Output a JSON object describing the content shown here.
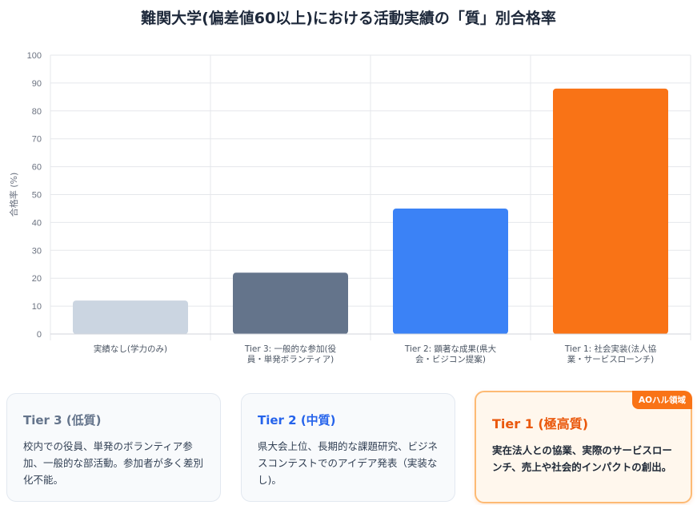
{
  "page": {
    "title": "難関大学(偏差値60以上)における活動実績の「質」別合格率"
  },
  "chart_data": {
    "type": "bar",
    "ylabel": "合格率 (%)",
    "ylim": [
      0,
      100
    ],
    "yticks": [
      0,
      10,
      20,
      30,
      40,
      50,
      60,
      70,
      80,
      90,
      100
    ],
    "grid": true,
    "categories": [
      [
        "実績なし(学力のみ)"
      ],
      [
        "Tier 3: 一般的な参加(役",
        "員・単発ボランティア)"
      ],
      [
        "Tier 2: 顕著な成果(県大",
        "会・ビジコン提案)"
      ],
      [
        "Tier 1: 社会実装(法人協",
        "業・サービスローンチ)"
      ]
    ],
    "values": [
      12,
      22,
      45,
      88
    ],
    "colors": [
      "#cbd5e1",
      "#64748b",
      "#3b82f6",
      "#f97316"
    ]
  },
  "cards": [
    {
      "title": "Tier 3 (低質)",
      "body": "校内での役員、単発のボランティア参加、一般的な部活動。参加者が多く差別化不能。"
    },
    {
      "title": "Tier 2 (中質)",
      "body": "県大会上位、長期的な課題研究、ビジネスコンテストでのアイデア発表（実装なし)。"
    },
    {
      "title": "Tier 1 (極高質)",
      "badge": "AOハル領域",
      "body": "実在法人との協業、実際のサービスローンチ、売上や社会的インパクトの創出。"
    }
  ]
}
